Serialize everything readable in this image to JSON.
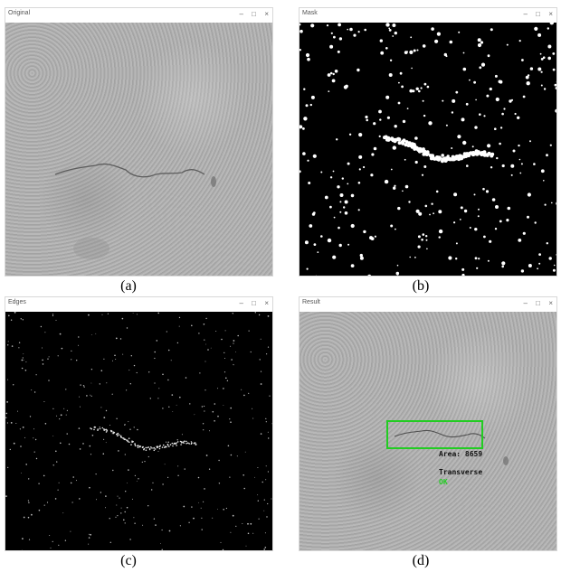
{
  "panels": [
    {
      "title": "Original",
      "caption": "(a)"
    },
    {
      "title": "Mask",
      "caption": "(b)"
    },
    {
      "title": "Edges",
      "caption": "(c)"
    },
    {
      "title": "Result",
      "caption": "(d)"
    }
  ],
  "window_controls": {
    "minimize": "–",
    "maximize": "□",
    "close": "×"
  },
  "result_overlay": {
    "area_label": "Area: 8659",
    "type_label": "Transverse",
    "status_label": "OK",
    "box_color": "#22cc22",
    "status_color": "#22cc22"
  }
}
